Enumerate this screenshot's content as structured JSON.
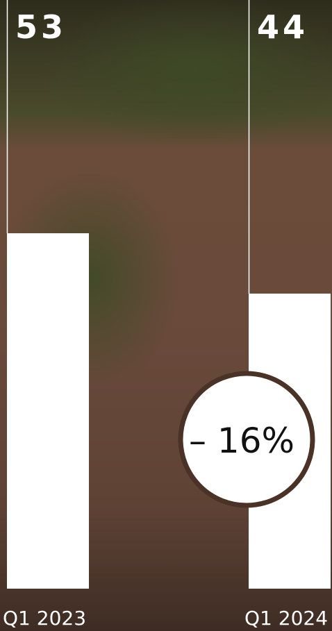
{
  "chart_data": {
    "type": "bar",
    "categories": [
      "Q1 2023",
      "Q1 2024"
    ],
    "values": [
      53,
      44
    ],
    "color": "#ffffff",
    "annotation": "– 16%"
  }
}
